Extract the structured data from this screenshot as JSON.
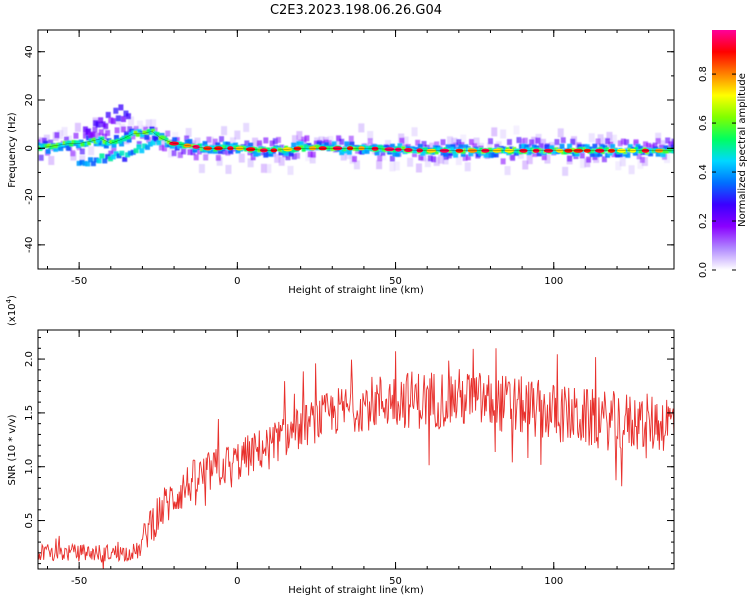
{
  "title": "C2E3.2023.198.06.26.G04",
  "chart_data": [
    {
      "type": "heatmap",
      "xlabel": "Height of straight line (km)",
      "ylabel": "Frequency (Hz)",
      "xlim": [
        -63,
        138
      ],
      "ylim": [
        -50,
        49
      ],
      "xticks": [
        "-50",
        "0",
        "50",
        "100"
      ],
      "xtick_values": [
        -50,
        0,
        50,
        100
      ],
      "yticks": [
        "40",
        "20",
        "0",
        "-20",
        "-40"
      ],
      "ytick_values": [
        40,
        20,
        0,
        -20,
        -40
      ],
      "colorbar": {
        "label": "Normalized spectral amplitude",
        "ticks": [
          "0.0",
          "0.2",
          "0.4",
          "0.6",
          "0.8"
        ],
        "tick_values": [
          0.0,
          0.2,
          0.4,
          0.6,
          0.8
        ],
        "range": [
          0,
          0.98
        ],
        "colormap": [
          "#ffffff",
          "#b088ff",
          "#8a00ff",
          "#3b00ff",
          "#0070ff",
          "#00d8ff",
          "#00ff60",
          "#80ff00",
          "#ffff00",
          "#ff8000",
          "#ff0000",
          "#ff0099"
        ]
      },
      "ridge": {
        "x": [
          -63,
          -58,
          -53,
          -50,
          -46,
          -43,
          -40,
          -36,
          -33,
          -30,
          -27,
          -24,
          -20,
          -15,
          -10,
          -5,
          0,
          10,
          20,
          40,
          60,
          80,
          100,
          120,
          138
        ],
        "y": [
          0,
          1,
          2,
          2,
          3,
          4,
          2,
          4,
          6,
          6,
          7,
          4,
          2,
          1,
          0,
          0,
          0,
          -1,
          0,
          0,
          -1,
          -1,
          -1,
          -1,
          -1
        ]
      },
      "lower_track": {
        "x": [
          -50,
          -46,
          -40,
          -35,
          -30,
          -27,
          -24
        ],
        "y": [
          -5,
          -5,
          -4,
          -3,
          0,
          2,
          4
        ]
      },
      "upper_blob": {
        "x": [
          -48,
          -44,
          -40,
          -36,
          -34
        ],
        "y": [
          6,
          9,
          12,
          15,
          16
        ]
      },
      "grid": false
    },
    {
      "type": "line",
      "xlabel": "Height of straight line (km)",
      "ylabel": "SNR (10 * v/v)",
      "y_multiplier": "(x10",
      "y_multiplier_exp": "4",
      "y_multiplier_close": ")",
      "xlim": [
        -63,
        138
      ],
      "ylim": [
        0.05,
        2.27
      ],
      "xticks": [
        "-50",
        "0",
        "50",
        "100"
      ],
      "xtick_values": [
        -50,
        0,
        50,
        100
      ],
      "yticks": [
        "0.5",
        "1.0",
        "1.5",
        "2.0"
      ],
      "ytick_values": [
        0.5,
        1.0,
        1.5,
        2.0
      ],
      "series": [
        {
          "color": "#e8302c",
          "trend_x": [
            -63,
            -55,
            -45,
            -35,
            -31,
            -28,
            -24,
            -20,
            -15,
            -10,
            -5,
            0,
            10,
            20,
            30,
            40,
            50,
            60,
            70,
            80,
            90,
            100,
            110,
            120,
            130,
            138
          ],
          "trend_y": [
            0.2,
            0.2,
            0.2,
            0.2,
            0.22,
            0.45,
            0.6,
            0.72,
            0.85,
            0.93,
            1.0,
            1.05,
            1.2,
            1.36,
            1.5,
            1.58,
            1.63,
            1.62,
            1.64,
            1.6,
            1.56,
            1.5,
            1.45,
            1.42,
            1.4,
            1.42
          ],
          "noise": [
            0.08,
            0.08,
            0.08,
            0.08,
            0.08,
            0.2,
            0.2,
            0.2,
            0.2,
            0.2,
            0.2,
            0.2,
            0.2,
            0.2,
            0.22,
            0.25,
            0.27,
            0.28,
            0.28,
            0.28,
            0.28,
            0.28,
            0.28,
            0.28,
            0.28,
            0.28
          ],
          "n_points": 780
        }
      ],
      "grid": false
    }
  ]
}
